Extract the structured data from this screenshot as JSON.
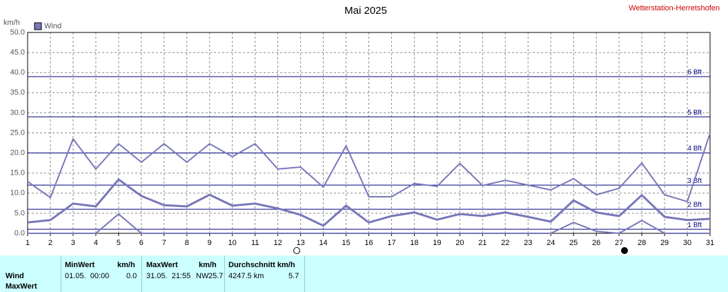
{
  "chart_data": {
    "type": "line",
    "title": "Mai 2025",
    "station": "Wetterstation-Herretshofen",
    "y_unit": "km/h",
    "x": [
      1,
      2,
      3,
      4,
      5,
      6,
      7,
      8,
      9,
      10,
      11,
      12,
      13,
      14,
      15,
      16,
      17,
      18,
      19,
      20,
      21,
      22,
      23,
      24,
      25,
      26,
      27,
      28,
      29,
      30,
      31
    ],
    "xlim": [
      1,
      31
    ],
    "xticks": [
      1,
      2,
      3,
      4,
      5,
      6,
      7,
      8,
      9,
      10,
      11,
      12,
      13,
      14,
      15,
      16,
      17,
      18,
      19,
      20,
      21,
      22,
      23,
      24,
      25,
      26,
      27,
      28,
      29,
      30,
      31
    ],
    "ylim": [
      0,
      50
    ],
    "yticks": [
      {
        "value": 0,
        "label": "0.0"
      },
      {
        "value": 5,
        "label": "5.0"
      },
      {
        "value": 10,
        "label": "10.0"
      },
      {
        "value": 15,
        "label": "15.0"
      },
      {
        "value": 20,
        "label": "20.0"
      },
      {
        "value": 25,
        "label": "25.0"
      },
      {
        "value": 30,
        "label": "30.0"
      },
      {
        "value": 35,
        "label": "35.0"
      },
      {
        "value": 40,
        "label": "40.0"
      },
      {
        "value": 45,
        "label": "45.0"
      },
      {
        "value": 50,
        "label": "50.0"
      }
    ],
    "grid": true,
    "series": [
      {
        "name": "Wind",
        "color": "#7777bb",
        "width": 3,
        "values": [
          2.7,
          3.3,
          7.4,
          6.7,
          13.4,
          9.3,
          7.0,
          6.7,
          9.6,
          6.9,
          7.4,
          6.2,
          4.6,
          1.9,
          6.9,
          2.7,
          4.3,
          5.2,
          3.4,
          4.8,
          4.3,
          5.2,
          4.1,
          2.9,
          8.2,
          5.2,
          4.3,
          9.5,
          4.1,
          3.3,
          3.6
        ]
      },
      {
        "color": "#7777bb",
        "width": 2,
        "values": [
          12.9,
          8.9,
          23.5,
          16.0,
          22.3,
          17.7,
          22.3,
          17.7,
          22.3,
          19.1,
          22.3,
          16.0,
          16.5,
          11.5,
          21.8,
          9.1,
          9.1,
          12.4,
          11.7,
          17.4,
          11.9,
          13.2,
          12.0,
          10.8,
          13.6,
          9.6,
          11.2,
          17.5,
          9.6,
          7.9,
          24.9
        ]
      },
      {
        "color": "#7777bb",
        "width": 2,
        "values": [
          0,
          0,
          0,
          0,
          4.8,
          0,
          0,
          0,
          0,
          0,
          0,
          0,
          0,
          0,
          0,
          0,
          0,
          0,
          0,
          0,
          0,
          0,
          0,
          0,
          2.7,
          0.5,
          0,
          3.2,
          0,
          0,
          0
        ]
      }
    ],
    "reference_lines": [
      {
        "value": 1,
        "label": "1 Bft"
      },
      {
        "value": 6,
        "label": "2 Bft"
      },
      {
        "value": 12,
        "label": "3 Bft"
      },
      {
        "value": 20,
        "label": "4 Bft"
      },
      {
        "value": 29,
        "label": "5 Bft"
      },
      {
        "value": 39,
        "label": "6 Bft"
      }
    ],
    "reference_color": "#000080"
  },
  "summary_table": {
    "row_labels": [
      "Wind",
      "MaxWert"
    ],
    "columns": [
      {
        "title": "MinWert",
        "unit": "km/h",
        "cells": [
          "01.05.  00:00",
          "0.0"
        ]
      },
      {
        "title": "MaxWert",
        "unit": "km/h",
        "cells": [
          "31.05.  21:55",
          "NW",
          "25.7"
        ]
      },
      {
        "title": "Durchschnitt km/h",
        "cells": [
          "4247.5 km",
          "5.7"
        ]
      }
    ]
  }
}
